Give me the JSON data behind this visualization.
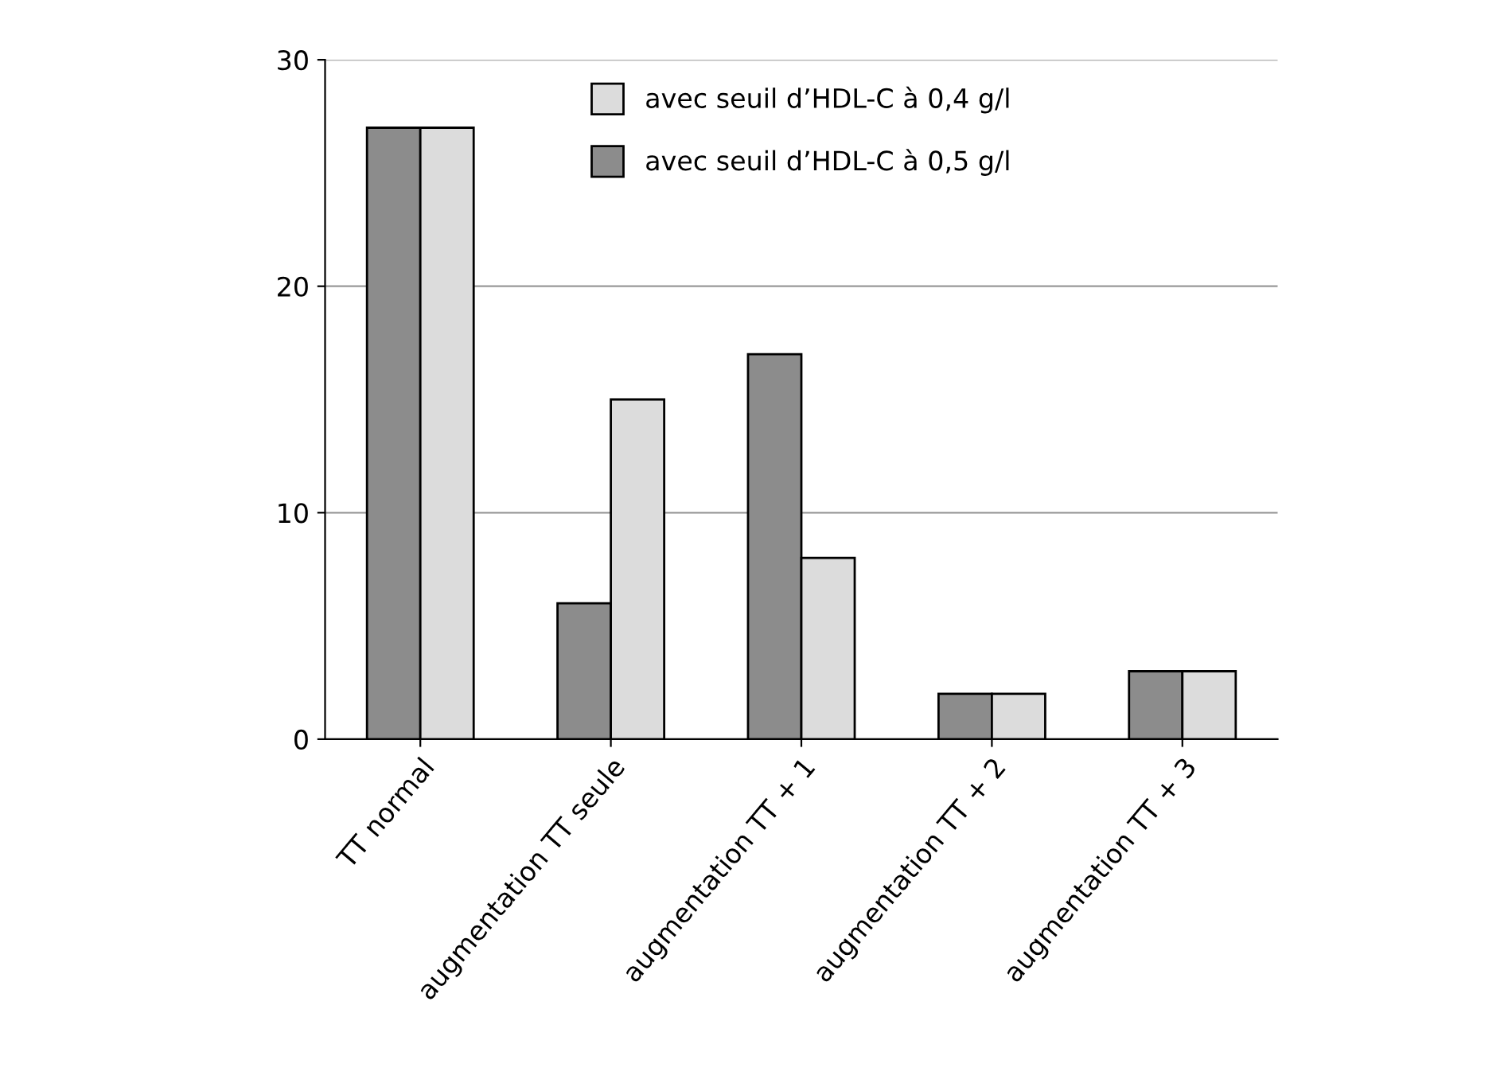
{
  "chart_data": {
    "type": "bar",
    "categories": [
      "TT normal",
      "augmentation TT seule",
      "augmentation TT + 1",
      "augmentation TT + 2",
      "augmentation TT + 3"
    ],
    "series": [
      {
        "name": "avec seuil d’HDL-C à 0,5 g/l",
        "color": "#8c8c8c",
        "values": [
          27,
          6,
          17,
          2,
          3
        ]
      },
      {
        "name": "avec seuil d’HDL-C à 0,4 g/l",
        "color": "#dcdcdc",
        "values": [
          27,
          15,
          8,
          2,
          3
        ]
      }
    ],
    "ylim": [
      0,
      30
    ],
    "yticks": [
      0,
      10,
      20,
      30
    ],
    "grid": "y",
    "legend": "top"
  }
}
